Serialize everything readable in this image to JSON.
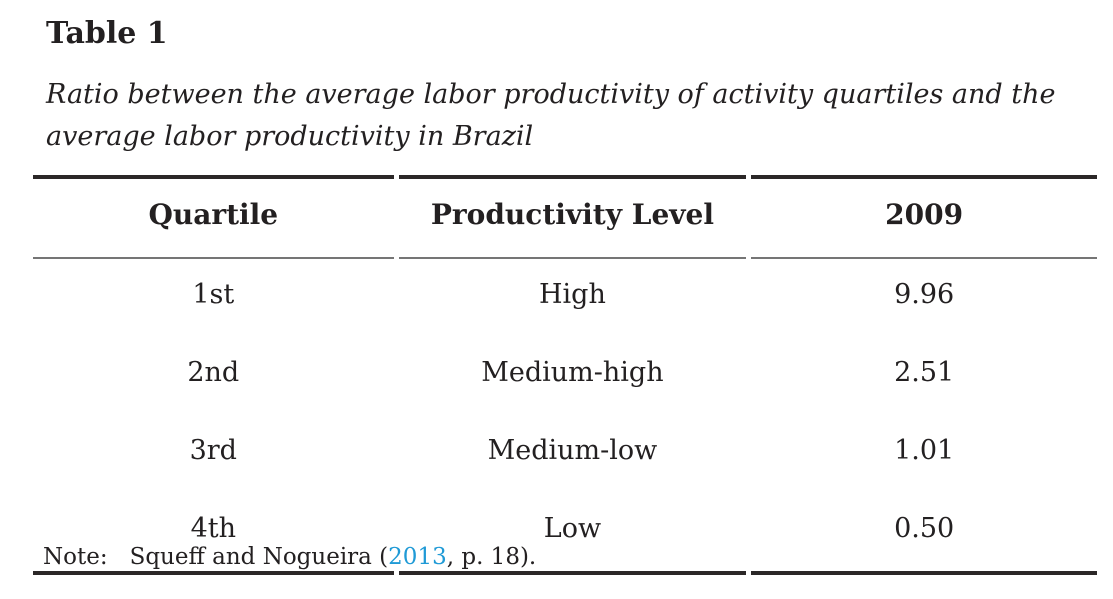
{
  "page": {
    "background": "#ffffff",
    "text_color": "#232021"
  },
  "title": "Table 1",
  "caption": {
    "line1": "Ratio between the average labor productivity of activity quartiles and the",
    "line2": "average labor productivity in Brazil"
  },
  "table": {
    "headers": [
      "Quartile",
      "Productivity Level",
      "2009"
    ],
    "rows": [
      [
        "1st",
        "High",
        "9.96"
      ],
      [
        "2nd",
        "Medium-high",
        "2.51"
      ],
      [
        "3rd",
        "Medium-low",
        "1.01"
      ],
      [
        "4th",
        "Low",
        "0.50"
      ]
    ],
    "thick_rule_color": "#2b2727",
    "header_rule_color": "#757575"
  },
  "note": {
    "label": "Note:",
    "pre": "Squeff and Nogueira (",
    "link": "2013",
    "post": ", p. 18).",
    "link_color": "#1f9ad6"
  }
}
